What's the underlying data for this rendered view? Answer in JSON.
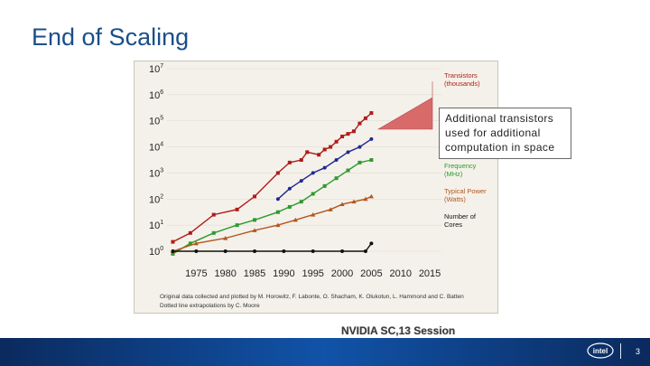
{
  "slide": {
    "title": "End of Scaling",
    "footer_caption": "NVIDIA SC,13 Session",
    "page_number": "3",
    "callout_text": "Additional transistors used for additional computation in space"
  },
  "colors": {
    "title": "#1a4f8a",
    "transistors": "#b01b1b",
    "performance": "#1e2a8f",
    "frequency": "#2f9a2f",
    "power": "#b5561c",
    "cores": "#111111",
    "callout_arrow": "#d96a6a",
    "bar": "#0b3f86"
  },
  "chart_data": {
    "type": "scatter",
    "x_ticks": [
      "1975",
      "1980",
      "1985",
      "1990",
      "1995",
      "2000",
      "2005",
      "2010",
      "2015"
    ],
    "y_tick_labels": [
      {
        "base": "10",
        "exp": "7"
      },
      {
        "base": "10",
        "exp": "6"
      },
      {
        "base": "10",
        "exp": "5"
      },
      {
        "base": "10",
        "exp": "4"
      },
      {
        "base": "10",
        "exp": "3"
      },
      {
        "base": "10",
        "exp": "2"
      },
      {
        "base": "10",
        "exp": "1"
      },
      {
        "base": "10",
        "exp": "0"
      }
    ],
    "xlim": [
      1970,
      2017
    ],
    "ylim": [
      0,
      7
    ],
    "y_scale": "log10",
    "legend": [
      {
        "label": "Transistors (thousands)",
        "color": "#b01b1b"
      },
      {
        "label": "Frequency (MHz)",
        "color": "#2f9a2f"
      },
      {
        "label": "Typical Power (Watts)",
        "color": "#b5561c"
      },
      {
        "label": "Number of Cores",
        "color": "#111111"
      }
    ],
    "series": [
      {
        "name": "Transistors (thousands)",
        "color": "#b01b1b",
        "marker": "square",
        "x": [
          1971,
          1974,
          1978,
          1982,
          1985,
          1989,
          1991,
          1993,
          1994,
          1996,
          1997,
          1998,
          1999,
          2000,
          2001,
          2002,
          2003,
          2004,
          2005
        ],
        "y": [
          0.36,
          0.7,
          1.4,
          1.6,
          2.1,
          3.0,
          3.4,
          3.5,
          3.8,
          3.7,
          3.9,
          4.0,
          4.2,
          4.4,
          4.5,
          4.6,
          4.9,
          5.1,
          5.3
        ]
      },
      {
        "name": "",
        "color": "#1e2a8f",
        "marker": "dot",
        "x": [
          1989,
          1991,
          1993,
          1995,
          1997,
          1999,
          2001,
          2003,
          2005
        ],
        "y": [
          2.0,
          2.4,
          2.7,
          3.0,
          3.2,
          3.5,
          3.8,
          4.0,
          4.3
        ]
      },
      {
        "name": "Frequency (MHz)",
        "color": "#2f9a2f",
        "marker": "square",
        "x": [
          1971,
          1974,
          1978,
          1982,
          1985,
          1989,
          1991,
          1993,
          1995,
          1997,
          1999,
          2001,
          2003,
          2005
        ],
        "y": [
          -0.1,
          0.3,
          0.7,
          1.0,
          1.2,
          1.5,
          1.7,
          1.9,
          2.2,
          2.5,
          2.8,
          3.1,
          3.4,
          3.5
        ]
      },
      {
        "name": "Typical Power (Watts)",
        "color": "#b5561c",
        "marker": "triangle",
        "x": [
          1971,
          1975,
          1980,
          1985,
          1989,
          1992,
          1995,
          1998,
          2000,
          2002,
          2004,
          2005
        ],
        "y": [
          0.0,
          0.3,
          0.5,
          0.8,
          1.0,
          1.2,
          1.4,
          1.6,
          1.8,
          1.9,
          2.0,
          2.1
        ]
      },
      {
        "name": "Number of Cores",
        "color": "#111111",
        "marker": "dot",
        "x": [
          1971,
          1975,
          1980,
          1985,
          1990,
          1995,
          2000,
          2004,
          2005
        ],
        "y": [
          0,
          0,
          0,
          0,
          0,
          0,
          0,
          0,
          0.3
        ]
      }
    ],
    "caption_lines": [
      "Original data collected and plotted by M. Horowitz, F. Labonte, O. Shacham, K. Olukotun, L. Hammond and C. Batten",
      "Dotted line extrapolations by C. Moore"
    ]
  }
}
